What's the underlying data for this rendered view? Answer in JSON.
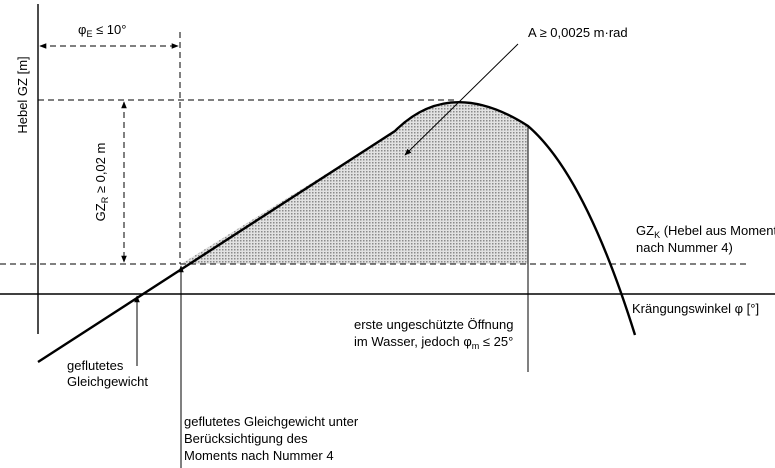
{
  "diagram": {
    "y_axis_label": "Hebel GZ [m]",
    "x_axis_label": "Krängungswinkel φ [°]",
    "phi_e": {
      "symbol": "φ",
      "subscript": "E",
      "relation": " ≤ 10°"
    },
    "area_label": "A ≥ 0,0025 m·rad",
    "gz_r": {
      "main": "GZ",
      "subscript": "R",
      "relation": " ≥ 0,02 m"
    },
    "gz_k": {
      "main": "GZ",
      "subscript": "K",
      "rest": " (Hebel aus Moment",
      "line2": "nach Nummer 4)"
    },
    "opening": {
      "line1": "erste ungeschützte Öffnung",
      "line2_prefix": "im Wasser, jedoch φ",
      "line2_subscript": "m",
      "line2_suffix": " ≤ 25°"
    },
    "flooded_equilibrium": [
      "geflutetes",
      "Gleichgewicht"
    ],
    "flooded_equilibrium_moment": [
      "geflutetes Gleichgewicht unter",
      "Berücksichtigung des",
      "Moments nach Nummer 4"
    ],
    "colors": {
      "line": "#000000",
      "hatch_fill": "#c8c8c8"
    }
  }
}
